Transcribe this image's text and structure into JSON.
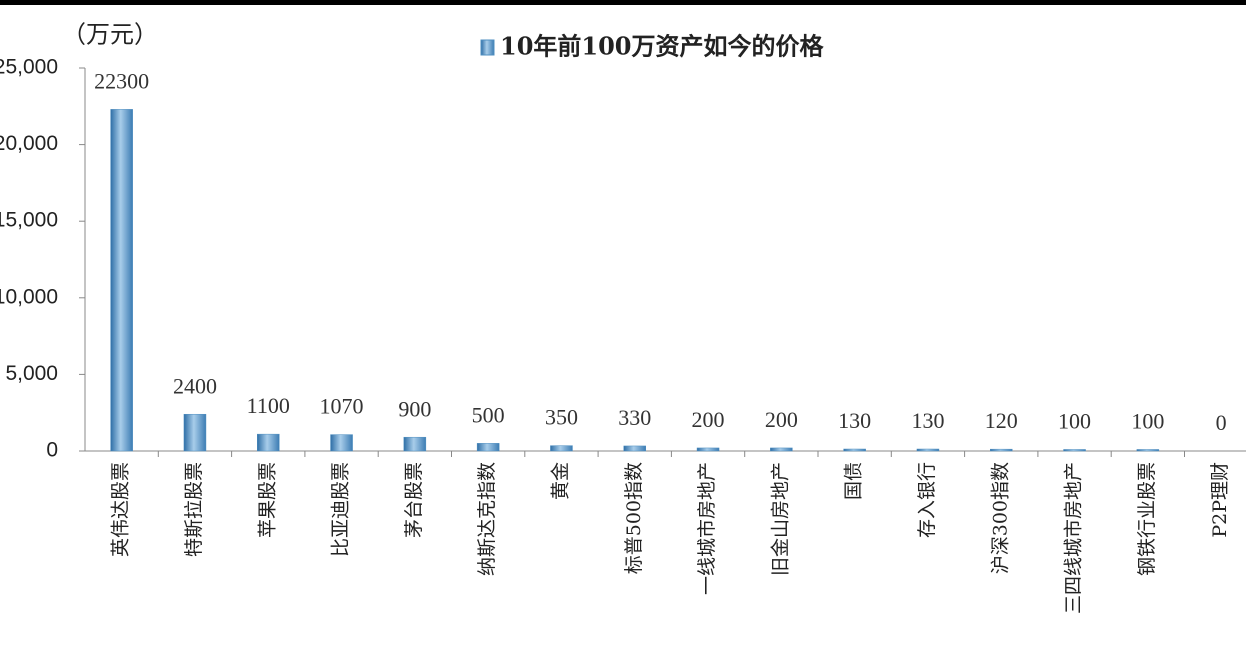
{
  "chart_data": {
    "type": "bar",
    "y_axis_label": "（万元）",
    "categories": [
      "英伟达股票",
      "特斯拉股票",
      "苹果股票",
      "比亚迪股票",
      "茅台股票",
      "纳斯达克指数",
      "黄金",
      "标普500指数",
      "一线城市房地产",
      "旧金山房地产",
      "国债",
      "存入银行",
      "沪深300指数",
      "三四线城市房地产",
      "钢铁行业股票",
      "P2P理财"
    ],
    "series": [
      {
        "name": "10年前100万资产如今的价格",
        "color": "#4f8fc0",
        "values": [
          22300,
          2400,
          1100,
          1070,
          900,
          500,
          350,
          330,
          200,
          200,
          130,
          130,
          120,
          100,
          100,
          0
        ]
      }
    ],
    "ylim": [
      0,
      25000
    ],
    "yticks": [
      0,
      {
        "value": 5000,
        "label": "5,000"
      },
      {
        "value": 10000,
        "label": "10,000"
      },
      {
        "value": 15000,
        "label": "15,000"
      },
      {
        "value": 20000,
        "label": "20,000"
      },
      {
        "value": 25000,
        "label": "25,000"
      }
    ],
    "legend": "top"
  }
}
